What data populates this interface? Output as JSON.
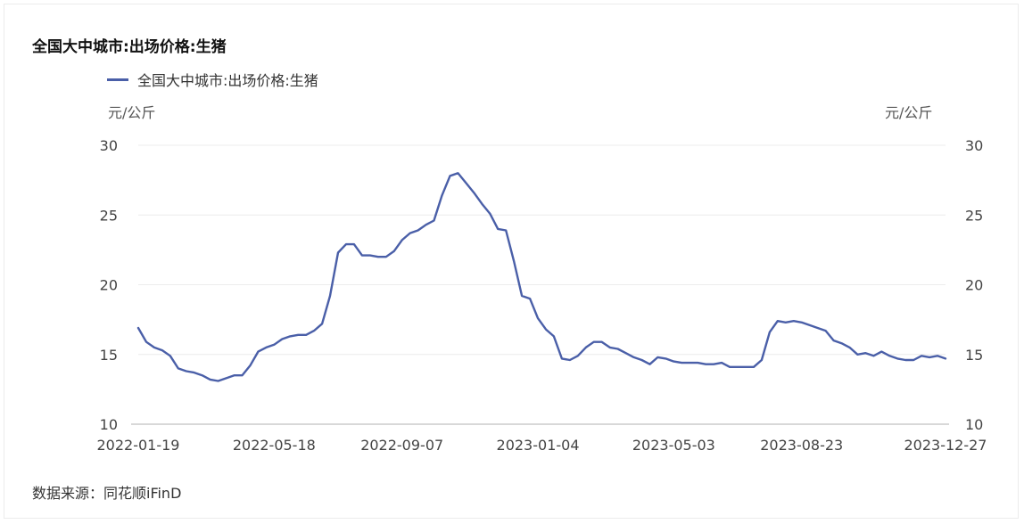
{
  "chart_data": {
    "type": "line",
    "title": "全国大中城市:出场价格:生猪",
    "ylabel_left": "元/公斤",
    "ylabel_right": "元/公斤",
    "ylim": [
      10,
      30
    ],
    "yticks": [
      10,
      15,
      20,
      25,
      30
    ],
    "xticks": [
      "2022-01-19",
      "2022-05-18",
      "2022-09-07",
      "2023-01-04",
      "2023-05-03",
      "2023-08-23",
      "2023-12-27"
    ],
    "xlim": [
      "2022-01-19",
      "2023-12-27"
    ],
    "grid": "horizontal",
    "legend_position": "top-left",
    "source": "数据来源：同花顺iFinD",
    "series": [
      {
        "name": "全国大中城市:出场价格:生猪",
        "color": "#4a5fa8",
        "points": [
          [
            "2022-01-19",
            16.9
          ],
          [
            "2022-01-26",
            15.9
          ],
          [
            "2022-02-02",
            15.5
          ],
          [
            "2022-02-09",
            15.3
          ],
          [
            "2022-02-16",
            14.9
          ],
          [
            "2022-02-23",
            14.0
          ],
          [
            "2022-03-02",
            13.8
          ],
          [
            "2022-03-09",
            13.7
          ],
          [
            "2022-03-16",
            13.5
          ],
          [
            "2022-03-23",
            13.2
          ],
          [
            "2022-03-30",
            13.1
          ],
          [
            "2022-04-06",
            13.3
          ],
          [
            "2022-04-13",
            13.5
          ],
          [
            "2022-04-20",
            13.5
          ],
          [
            "2022-04-27",
            14.2
          ],
          [
            "2022-05-04",
            15.2
          ],
          [
            "2022-05-11",
            15.5
          ],
          [
            "2022-05-18",
            15.7
          ],
          [
            "2022-05-25",
            16.1
          ],
          [
            "2022-06-01",
            16.3
          ],
          [
            "2022-06-08",
            16.4
          ],
          [
            "2022-06-15",
            16.4
          ],
          [
            "2022-06-22",
            16.7
          ],
          [
            "2022-06-29",
            17.2
          ],
          [
            "2022-07-06",
            19.2
          ],
          [
            "2022-07-13",
            22.3
          ],
          [
            "2022-07-20",
            22.9
          ],
          [
            "2022-07-27",
            22.9
          ],
          [
            "2022-08-03",
            22.1
          ],
          [
            "2022-08-10",
            22.1
          ],
          [
            "2022-08-17",
            22.0
          ],
          [
            "2022-08-24",
            22.0
          ],
          [
            "2022-08-31",
            22.4
          ],
          [
            "2022-09-07",
            23.2
          ],
          [
            "2022-09-14",
            23.7
          ],
          [
            "2022-09-21",
            23.9
          ],
          [
            "2022-09-28",
            24.3
          ],
          [
            "2022-10-05",
            24.6
          ],
          [
            "2022-10-12",
            26.4
          ],
          [
            "2022-10-19",
            27.8
          ],
          [
            "2022-10-26",
            28.0
          ],
          [
            "2022-11-02",
            27.3
          ],
          [
            "2022-11-09",
            26.6
          ],
          [
            "2022-11-16",
            25.8
          ],
          [
            "2022-11-23",
            25.1
          ],
          [
            "2022-11-30",
            24.0
          ],
          [
            "2022-12-07",
            23.9
          ],
          [
            "2022-12-14",
            21.7
          ],
          [
            "2022-12-21",
            19.2
          ],
          [
            "2022-12-28",
            19.0
          ],
          [
            "2023-01-04",
            17.6
          ],
          [
            "2023-01-11",
            16.8
          ],
          [
            "2023-01-18",
            16.3
          ],
          [
            "2023-01-25",
            14.7
          ],
          [
            "2023-02-01",
            14.6
          ],
          [
            "2023-02-08",
            14.9
          ],
          [
            "2023-02-15",
            15.5
          ],
          [
            "2023-02-22",
            15.9
          ],
          [
            "2023-03-01",
            15.9
          ],
          [
            "2023-03-08",
            15.5
          ],
          [
            "2023-03-15",
            15.4
          ],
          [
            "2023-03-22",
            15.1
          ],
          [
            "2023-03-29",
            14.8
          ],
          [
            "2023-04-05",
            14.6
          ],
          [
            "2023-04-12",
            14.3
          ],
          [
            "2023-04-19",
            14.8
          ],
          [
            "2023-04-26",
            14.7
          ],
          [
            "2023-05-03",
            14.5
          ],
          [
            "2023-05-10",
            14.4
          ],
          [
            "2023-05-17",
            14.4
          ],
          [
            "2023-05-24",
            14.4
          ],
          [
            "2023-05-31",
            14.3
          ],
          [
            "2023-06-07",
            14.3
          ],
          [
            "2023-06-14",
            14.4
          ],
          [
            "2023-06-21",
            14.1
          ],
          [
            "2023-06-28",
            14.1
          ],
          [
            "2023-07-05",
            14.1
          ],
          [
            "2023-07-12",
            14.1
          ],
          [
            "2023-07-19",
            14.6
          ],
          [
            "2023-07-26",
            16.6
          ],
          [
            "2023-08-02",
            17.4
          ],
          [
            "2023-08-09",
            17.3
          ],
          [
            "2023-08-16",
            17.4
          ],
          [
            "2023-08-23",
            17.3
          ],
          [
            "2023-08-30",
            17.1
          ],
          [
            "2023-09-06",
            16.9
          ],
          [
            "2023-09-13",
            16.7
          ],
          [
            "2023-09-20",
            16.0
          ],
          [
            "2023-09-27",
            15.8
          ],
          [
            "2023-10-04",
            15.5
          ],
          [
            "2023-10-11",
            15.0
          ],
          [
            "2023-10-18",
            15.1
          ],
          [
            "2023-10-25",
            14.9
          ],
          [
            "2023-11-01",
            15.2
          ],
          [
            "2023-11-08",
            14.9
          ],
          [
            "2023-11-15",
            14.7
          ],
          [
            "2023-11-22",
            14.6
          ],
          [
            "2023-11-29",
            14.6
          ],
          [
            "2023-12-06",
            14.9
          ],
          [
            "2023-12-13",
            14.8
          ],
          [
            "2023-12-20",
            14.9
          ],
          [
            "2023-12-27",
            14.7
          ]
        ]
      }
    ]
  }
}
